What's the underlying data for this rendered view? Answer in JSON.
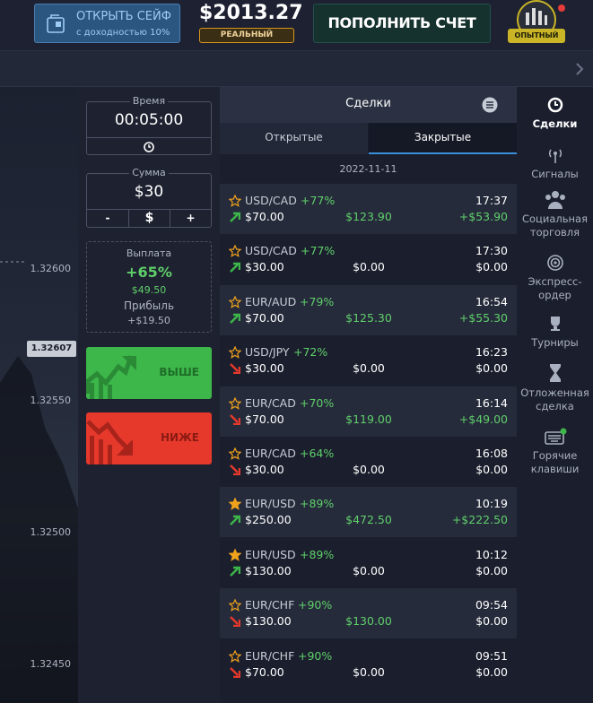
{
  "header": {
    "safe_button": {
      "title": "ОТКРЫТЬ СЕЙФ",
      "subtitle": "с доходностью 10%"
    },
    "balance": "$2013.27",
    "account_type": "РЕАЛЬНЫЙ",
    "deposit_button": "ПОПОЛНИТЬ СЧЕТ",
    "level_badge": "ОПЫТНЫЙ"
  },
  "chart": {
    "price_tag": "1.32607",
    "price_labels": [
      "1.32600",
      "1.32550",
      "1.32500",
      "1.32450"
    ]
  },
  "trade_panel": {
    "time_label": "Время",
    "time": "00:05:00",
    "amount_label": "Сумма",
    "amount": "$30",
    "minus": "-",
    "currency": "$",
    "plus": "+",
    "payout_label": "Выплата",
    "payout_percent": "+65%",
    "payout_amount": "$49.50",
    "profit_label": "Прибыль",
    "profit": "+$19.50",
    "up_button": "ВЫШЕ",
    "down_button": "НИЖЕ"
  },
  "deals": {
    "title": "Сделки",
    "tabs": [
      "Открытые",
      "Закрытые"
    ],
    "date": "2022-11-11",
    "trades": [
      {
        "pair": "USD/CAD",
        "percent": "+77%",
        "starred": false,
        "direction": "up",
        "stake": "$70.00",
        "payout": "$123.90",
        "time": "17:37",
        "profit": "+$53.90"
      },
      {
        "pair": "USD/CAD",
        "percent": "+77%",
        "starred": false,
        "direction": "up",
        "stake": "$30.00",
        "payout": "$0.00",
        "time": "17:30",
        "profit": "$0.00"
      },
      {
        "pair": "EUR/AUD",
        "percent": "+79%",
        "starred": false,
        "direction": "up",
        "stake": "$70.00",
        "payout": "$125.30",
        "time": "16:54",
        "profit": "+$55.30"
      },
      {
        "pair": "USD/JPY",
        "percent": "+72%",
        "starred": false,
        "direction": "down",
        "stake": "$30.00",
        "payout": "$0.00",
        "time": "16:23",
        "profit": "$0.00"
      },
      {
        "pair": "EUR/CAD",
        "percent": "+70%",
        "starred": false,
        "direction": "down",
        "stake": "$70.00",
        "payout": "$119.00",
        "time": "16:14",
        "profit": "+$49.00"
      },
      {
        "pair": "EUR/CAD",
        "percent": "+64%",
        "starred": false,
        "direction": "down",
        "stake": "$30.00",
        "payout": "$0.00",
        "time": "16:08",
        "profit": "$0.00"
      },
      {
        "pair": "EUR/USD",
        "percent": "+89%",
        "starred": true,
        "direction": "up",
        "stake": "$250.00",
        "payout": "$472.50",
        "time": "10:19",
        "profit": "+$222.50"
      },
      {
        "pair": "EUR/USD",
        "percent": "+89%",
        "starred": true,
        "direction": "up",
        "stake": "$130.00",
        "payout": "$0.00",
        "time": "10:12",
        "profit": "$0.00"
      },
      {
        "pair": "EUR/CHF",
        "percent": "+90%",
        "starred": false,
        "direction": "down",
        "stake": "$130.00",
        "payout": "$130.00",
        "time": "09:54",
        "profit": "$0.00"
      },
      {
        "pair": "EUR/CHF",
        "percent": "+90%",
        "starred": false,
        "direction": "down",
        "stake": "$70.00",
        "payout": "$0.00",
        "time": "09:51",
        "profit": "$0.00"
      }
    ]
  },
  "sidebar": [
    "Сделки",
    "Сигналы",
    "Социальная торговля",
    "Экспресс-ордер",
    "Турниры",
    "Отложенная сделка",
    "Горячие клавиши"
  ]
}
